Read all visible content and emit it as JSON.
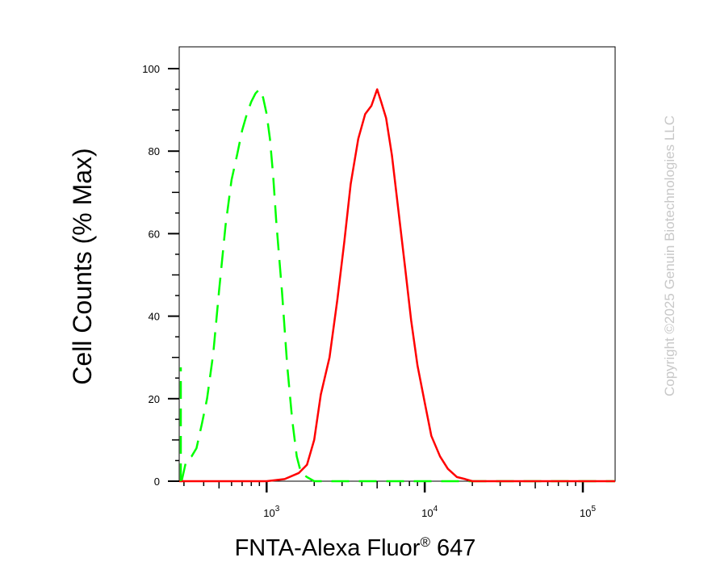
{
  "chart_data": {
    "type": "line",
    "xlabel": "FNTA-Alexa Fluor",
    "xlabel_superscript": "®",
    "xlabel_suffix": " 647",
    "ylabel": "Cell Counts (% Max)",
    "x_scale": "log",
    "xlim": [
      280,
      160000
    ],
    "ylim": [
      0,
      100
    ],
    "y_ticks": [
      0,
      20,
      40,
      60,
      80,
      100
    ],
    "x_ticks": [
      {
        "value": 1000,
        "base": "10",
        "exp": "3"
      },
      {
        "value": 10000,
        "base": "10",
        "exp": "4"
      },
      {
        "value": 100000,
        "base": "10",
        "exp": "5"
      }
    ],
    "grid": false,
    "legend": "none",
    "series": [
      {
        "color": "#00ff00",
        "dash": "dashed",
        "x": [
          290,
          310,
          335,
          360,
          390,
          420,
          460,
          500,
          550,
          600,
          650,
          700,
          750,
          800,
          850,
          900,
          950,
          1000,
          1050,
          1100,
          1150,
          1250,
          1350,
          1450,
          1550,
          1650,
          1800,
          2000,
          2300,
          2700,
          3500,
          5000,
          10000,
          30000,
          100000,
          160000
        ],
        "y": [
          0,
          5,
          6,
          8,
          14,
          20,
          31,
          46,
          62,
          73,
          79,
          85,
          89,
          92,
          94,
          95,
          93,
          89,
          83,
          74,
          63,
          46,
          28,
          15,
          6,
          2,
          1,
          0,
          0,
          0,
          0,
          0,
          0,
          0,
          0,
          0
        ]
      },
      {
        "color": "#ff0000",
        "dash": "solid",
        "x": [
          280,
          900,
          1000,
          1300,
          1600,
          1800,
          2000,
          2200,
          2500,
          2800,
          3100,
          3400,
          3800,
          4200,
          4600,
          5000,
          5300,
          5700,
          6200,
          6800,
          7500,
          8200,
          9000,
          10000,
          11000,
          12500,
          14000,
          16000,
          18000,
          20000,
          25000,
          50000,
          160000
        ],
        "y": [
          0,
          0,
          0,
          0.5,
          2,
          4,
          10,
          21,
          30,
          44,
          58,
          72,
          83,
          89,
          91,
          95,
          92,
          88,
          79,
          66,
          52,
          39,
          28,
          19,
          11,
          6,
          3,
          1,
          0.5,
          0,
          0,
          0,
          0
        ]
      }
    ]
  },
  "watermark": "Copyright ©2025 Genuin Biotechnologies LLC"
}
